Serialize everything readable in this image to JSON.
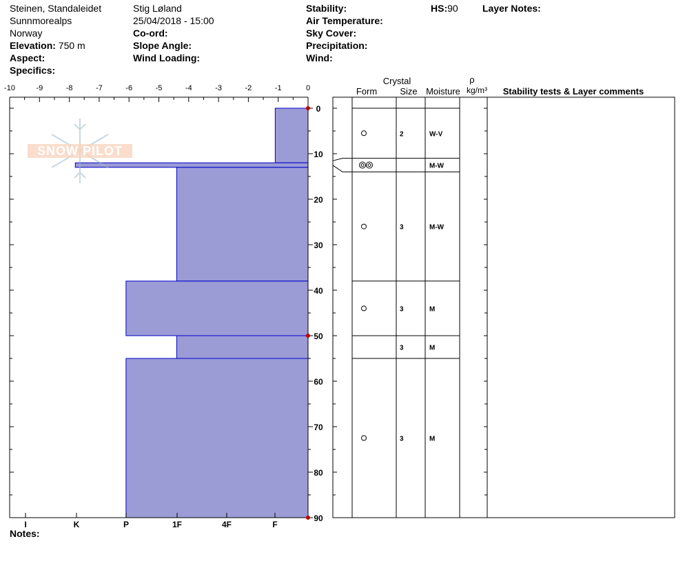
{
  "header": {
    "col1": {
      "location": "Steinen, Standaleidet",
      "range": "Sunnmorealps",
      "country": "Norway",
      "elevation_label": "Elevation:",
      "elevation_value": "750 m",
      "aspect_label": "Aspect:",
      "specifics_label": "Specifics:"
    },
    "col2": {
      "observer": "Stig Løland",
      "datetime": "25/04/2018 - 15:00",
      "coord_label": "Co-ord:",
      "slope_label": "Slope Angle:",
      "wind_loading_label": "Wind Loading:"
    },
    "col3": {
      "stability_label": "Stability:",
      "air_temp_label": "Air Temperature:",
      "sky_label": "Sky Cover:",
      "precip_label": "Precipitation:",
      "wind_label": "Wind:"
    },
    "col4": {
      "hs_label": "HS:",
      "hs_value": "90",
      "layer_notes_label": "Layer Notes:"
    }
  },
  "watermark": {
    "text": "SNOW PILOT"
  },
  "table": {
    "crystal_label": "Crystal",
    "form_label": "Form",
    "size_label": "Size",
    "moisture_label": "Moisture",
    "rho_label": "ρ",
    "density_unit": "kg/m³",
    "comments_label": "Stability tests & Layer comments"
  },
  "footer": {
    "notes_label": "Notes:"
  },
  "chart_data": {
    "type": "bar",
    "description_axis_top": "temperature",
    "temp_ticks": [
      -10,
      -9,
      -8,
      -7,
      -6,
      -5,
      -4,
      -3,
      -2,
      -1,
      0
    ],
    "temp_range": [
      -10,
      0
    ],
    "depth_ticks": [
      0,
      10,
      20,
      30,
      40,
      50,
      60,
      70,
      80,
      90
    ],
    "depth_range": [
      0,
      90
    ],
    "hardness_ticks": [
      "I",
      "K",
      "P",
      "1F",
      "4F",
      "F"
    ],
    "temperature_markers": [
      0,
      50,
      90
    ],
    "hardness_scale_note": "bar width in temperature-axis units measured from 0",
    "layers": [
      {
        "top": 0,
        "bottom": 12,
        "hardness_width": 1.1,
        "form": "small-circle",
        "size": "2",
        "moisture": "W-V"
      },
      {
        "top": 12,
        "bottom": 13,
        "hardness_width": 7.8,
        "form": "double-circle",
        "size": "",
        "moisture": "M-W"
      },
      {
        "top": 13,
        "bottom": 38,
        "hardness_width": 4.4,
        "form": "small-circle",
        "size": "3",
        "moisture": "M-W"
      },
      {
        "top": 38,
        "bottom": 50,
        "hardness_width": 6.1,
        "form": "small-circle",
        "size": "3",
        "moisture": "M"
      },
      {
        "top": 50,
        "bottom": 55,
        "hardness_width": 4.4,
        "form": "",
        "size": "3",
        "moisture": "M"
      },
      {
        "top": 55,
        "bottom": 90,
        "hardness_width": 6.1,
        "form": "small-circle",
        "size": "3",
        "moisture": "M"
      }
    ],
    "table_rows": [
      {
        "top": 0,
        "bottom": 11,
        "label_depth": 5.5
      },
      {
        "top": 11,
        "bottom": 14,
        "label_depth": 12.5
      },
      {
        "top": 14,
        "bottom": 38,
        "label_depth": 26
      },
      {
        "top": 38,
        "bottom": 50,
        "label_depth": 44
      },
      {
        "top": 50,
        "bottom": 55,
        "label_depth": 52.5
      },
      {
        "top": 55,
        "bottom": 90,
        "label_depth": 72.5
      }
    ],
    "colors": {
      "bar_fill": "#9b9bd6",
      "bar_stroke": "#0000c8",
      "marker": "#c00000"
    }
  }
}
